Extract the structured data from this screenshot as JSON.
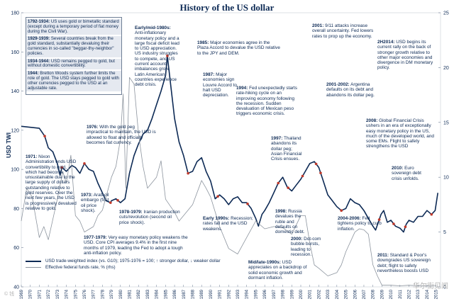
{
  "chart_data": {
    "type": "line",
    "title": "History of the US dollar",
    "ylabel_left": "USD TWI",
    "ylim_left": [
      40,
      180
    ],
    "yticks_left": [
      40,
      60,
      80,
      100,
      120,
      140,
      160,
      180
    ],
    "ylim_right": [
      0,
      25
    ],
    "yticks_right": [
      0,
      5,
      10,
      15,
      20,
      25
    ],
    "xlim": [
      1969,
      2015.5
    ],
    "x_tick_labels": [
      "1969",
      "1970",
      "1971",
      "1972",
      "1973",
      "1974",
      "1975",
      "1976",
      "1977",
      "1978",
      "1979",
      "1980",
      "1981",
      "1982",
      "1983",
      "1984",
      "1985",
      "1986",
      "1987",
      "1988",
      "1989",
      "1990",
      "1991",
      "1992",
      "1993",
      "1994",
      "1995",
      "1996",
      "1997",
      "1998",
      "1999",
      "2000",
      "2001",
      "2002",
      "2003",
      "2004",
      "2005",
      "2006",
      "2007",
      "2008",
      "2009",
      "2010",
      "2011",
      "2012",
      "2013",
      "2014",
      "2015"
    ],
    "series": [
      {
        "name": "USD trade-weighted index (vs. G10); 1975-1976 = 100; ↑ stronger dollar, ↓ weaker dollar",
        "axis": "left",
        "color": "#0d2a55",
        "x": [
          1969,
          1970,
          1971,
          1971.6,
          1972,
          1972.5,
          1973,
          1973.3,
          1973.5,
          1974,
          1974.6,
          1975,
          1975.5,
          1976,
          1976.5,
          1977,
          1977.5,
          1978,
          1978.4,
          1978.9,
          1979,
          1979.5,
          1980,
          1980.5,
          1981,
          1981.5,
          1982,
          1982.5,
          1983,
          1983.5,
          1984,
          1984.5,
          1985,
          1985.2,
          1985.5,
          1986,
          1986.5,
          1987,
          1987.5,
          1988,
          1988.5,
          1989,
          1989.5,
          1990,
          1990.5,
          1991,
          1991.5,
          1992,
          1992.5,
          1993,
          1993.5,
          1994,
          1994.5,
          1995,
          1995.3,
          1995.7,
          1996,
          1996.5,
          1997,
          1997.5,
          1998,
          1998.5,
          1999,
          1999.5,
          2000,
          2000.5,
          2001,
          2001.5,
          2002,
          2002.5,
          2003,
          2003.5,
          2004,
          2004.5,
          2005,
          2005.5,
          2006,
          2006.5,
          2007,
          2007.5,
          2008,
          2008.3,
          2008.9,
          2009.2,
          2009.6,
          2010,
          2010.5,
          2011,
          2011.4,
          2011.7,
          2012,
          2012.5,
          2013,
          2013.5,
          2014,
          2014.5,
          2014.9,
          2015.2
        ],
        "y": [
          122,
          121.5,
          121,
          117,
          111,
          109,
          103,
          97,
          101,
          99,
          102,
          101,
          98,
          103,
          100,
          99,
          93,
          88,
          84,
          83,
          84,
          85,
          83,
          85,
          98,
          107,
          113,
          118,
          120,
          126,
          133,
          140,
          148,
          158,
          146,
          126,
          114,
          107,
          98,
          99,
          104,
          106,
          99,
          94,
          85,
          87,
          85,
          82,
          85,
          86,
          83,
          83,
          80,
          75,
          71,
          77,
          79,
          83,
          88,
          93,
          96,
          91,
          89,
          92,
          95,
          99,
          103,
          104,
          101,
          94,
          87,
          84,
          81,
          79,
          80,
          85,
          83,
          82,
          79,
          75,
          71,
          69,
          77,
          79,
          73,
          74,
          71,
          70,
          68,
          72,
          74,
          73,
          76,
          76,
          79,
          77,
          79,
          88
        ]
      },
      {
        "name": "Effective federal funds rate, % (rhs)",
        "axis": "right",
        "color": "#8c949e",
        "x": [
          1969,
          1969.6,
          1970.2,
          1971,
          1971.5,
          1972,
          1973,
          1973.6,
          1974,
          1974.5,
          1975,
          1975.5,
          1976,
          1977,
          1977.5,
          1978,
          1978.5,
          1979,
          1979.5,
          1980,
          1980.3,
          1980.6,
          1981,
          1981.5,
          1982,
          1982.5,
          1983,
          1984,
          1984.5,
          1985,
          1986,
          1986.5,
          1987,
          1988,
          1989,
          1989.5,
          1990,
          1991,
          1992,
          1993,
          1994,
          1995,
          1996,
          1997,
          1998,
          1999,
          2000,
          2000.5,
          2001,
          2001.5,
          2002,
          2003,
          2004,
          2004.5,
          2005,
          2006,
          2006.5,
          2007,
          2007.5,
          2008,
          2008.5,
          2009,
          2010,
          2011,
          2012,
          2013,
          2014,
          2015
        ],
        "y": [
          6.0,
          9.0,
          8.2,
          4.5,
          5.5,
          4.3,
          8.0,
          10.5,
          9.5,
          12.0,
          6.5,
          6.0,
          5.0,
          5.5,
          6.5,
          7.0,
          8.5,
          10.0,
          11.0,
          13.5,
          17.6,
          9.0,
          19.1,
          18.5,
          14.0,
          11.0,
          9.0,
          10.0,
          11.5,
          8.0,
          6.8,
          6.0,
          6.5,
          7.5,
          9.7,
          9.0,
          8.2,
          5.5,
          3.5,
          3.0,
          4.5,
          6.0,
          5.3,
          5.5,
          5.4,
          4.8,
          6.5,
          6.5,
          4.0,
          2.0,
          1.7,
          1.0,
          1.3,
          2.0,
          3.2,
          5.0,
          5.3,
          5.2,
          4.8,
          2.0,
          1.0,
          0.15,
          0.15,
          0.1,
          0.15,
          0.1,
          0.1,
          0.13
        ]
      }
    ],
    "annotations": {
      "box": [
        {
          "bold": "1792-1934:",
          "text": " US uses gold or bimetallic standard (except during a temporary period of fiat money during the Civil War)."
        },
        {
          "bold": "1929-1939:",
          "text": " Several countries break from the gold standard, substantially devaluing their currencies in so-called \"beggar-thy-neighbor\" policies."
        },
        {
          "bold": "1934-1944:",
          "text": " USD remains pegged to gold, but without domestic convertibility."
        },
        {
          "bold": "1944:",
          "text": " Bretton Woods system further limits the role of gold. The USD stays pegged to gold with other currencies pegged to the USD at an adjustable rate."
        }
      ],
      "notes": [
        {
          "bold": "1971:",
          "text": " Nixon Administration ends USD convertibility to gold, which had become unsustainable due to the large supply of dollars outstanding relative to gold reserves. Over the next few years, the USD is progressively devalued relative to gold."
        },
        {
          "bold": "1973:",
          "text": " Arab oil embargo (first oil price shock)."
        },
        {
          "bold": "1976:",
          "text": " With the gold peg impractical to maintain, the USD is allowed to float and officially becomes fiat currency."
        },
        {
          "bold": "1978-1979:",
          "text": " Iranian production cuts/revolution (second oil price shock)."
        },
        {
          "bold": "1977-1979:",
          "text": " Very easy monetary policy weakens the USD. Core CPI averages 9.4% in the first nine months of 1979, leading the Fed to adopt a tough anti-inflation policy."
        },
        {
          "bold": "Early/mid-1980s:",
          "text": " Anti-inflationary monetary policy and a large fiscal deficit lead to USD appreciation. US industry struggles to compete, and US current account imbalances grow. Latin American countries experience debt crisis."
        },
        {
          "bold": "1985:",
          "text": " Major economies agree in the Plaza Accord to devalue the USD relative to the JPY and DEM."
        },
        {
          "bold": "1987:",
          "text": " Major economies sign Louvre Accord to halt USD depreciation."
        },
        {
          "bold": "Early 1990s:",
          "text": " Recession; rates fall and the USD weakens."
        },
        {
          "bold": "1994:",
          "text": " Fed unexpectedly starts rate-hiking cycle on an improving economy following the recession. Sudden devaluation of Mexican peso triggers economic crisis."
        },
        {
          "bold": "1997:",
          "text": " Thailand abandons its dollar peg; Asian Financial Crisis ensues."
        },
        {
          "bold": "1998:",
          "text": " Russia devalues the ruble and defaults on domestic debt."
        },
        {
          "bold": "2000:",
          "text": " Dot-com bubble bursts, leading to recession."
        },
        {
          "bold": "Mid/late-1990s:",
          "text": " USD appreciates on a backdrop of solid economic growth and dormant inflation."
        },
        {
          "bold": "2001:",
          "text": " 9/11 attacks increase overall uncertainty. Fed lowers rates to prop up the economy."
        },
        {
          "bold": "2001-2002:",
          "text": " Argentina defaults on its debt and abandons its dollar peg."
        },
        {
          "bold": "2004-2006:",
          "text": " Fed tightens policy to curb inflation."
        },
        {
          "bold": "2008:",
          "text": " Global Financial Crisis ushers in an era of exceptionally easy monetary policy in the US, much of the developed world, and some EMs. Flight to safety strengthens the USD"
        },
        {
          "bold": "2010:",
          "text": " Euro sovereign debt crisis unfolds."
        },
        {
          "bold": "2011:",
          "text": " Standard & Poor's downgrades US sovereign debt; flight to safety nevertheless boosts USD"
        },
        {
          "bold": "2H2014:",
          "text": " USD begins its current rally on the back of stronger growth relative to other major economies and divergence in DM monetary policy."
        }
      ]
    },
    "watermark": "华尔街见闻",
    "corner_mark": "© 钱"
  }
}
